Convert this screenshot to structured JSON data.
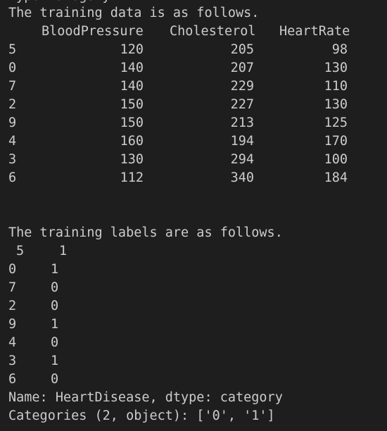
{
  "terminal": {
    "partial_top_line": "Type: ategory",
    "data_heading": "The training data is as follows.",
    "columns": [
      "BloodPressure",
      "Cholesterol",
      "HeartRate"
    ],
    "data_rows": [
      {
        "index": "5",
        "values": [
          "120",
          "205",
          "98"
        ]
      },
      {
        "index": "0",
        "values": [
          "140",
          "207",
          "130"
        ]
      },
      {
        "index": "7",
        "values": [
          "140",
          "229",
          "110"
        ]
      },
      {
        "index": "2",
        "values": [
          "150",
          "227",
          "130"
        ]
      },
      {
        "index": "9",
        "values": [
          "150",
          "213",
          "125"
        ]
      },
      {
        "index": "4",
        "values": [
          "160",
          "194",
          "170"
        ]
      },
      {
        "index": "3",
        "values": [
          "130",
          "294",
          "100"
        ]
      },
      {
        "index": "6",
        "values": [
          "112",
          "340",
          "184"
        ]
      }
    ],
    "labels_heading": "The training labels are as follows.",
    "label_rows": [
      {
        "index": "5",
        "value": "1"
      },
      {
        "index": "0",
        "value": "1"
      },
      {
        "index": "7",
        "value": "0"
      },
      {
        "index": "2",
        "value": "0"
      },
      {
        "index": "9",
        "value": "1"
      },
      {
        "index": "4",
        "value": "0"
      },
      {
        "index": "3",
        "value": "1"
      },
      {
        "index": "6",
        "value": "0"
      }
    ],
    "name_line": "Name: HeartDisease, dtype: category",
    "categories_line": "Categories (2, object): ['0', '1']"
  }
}
